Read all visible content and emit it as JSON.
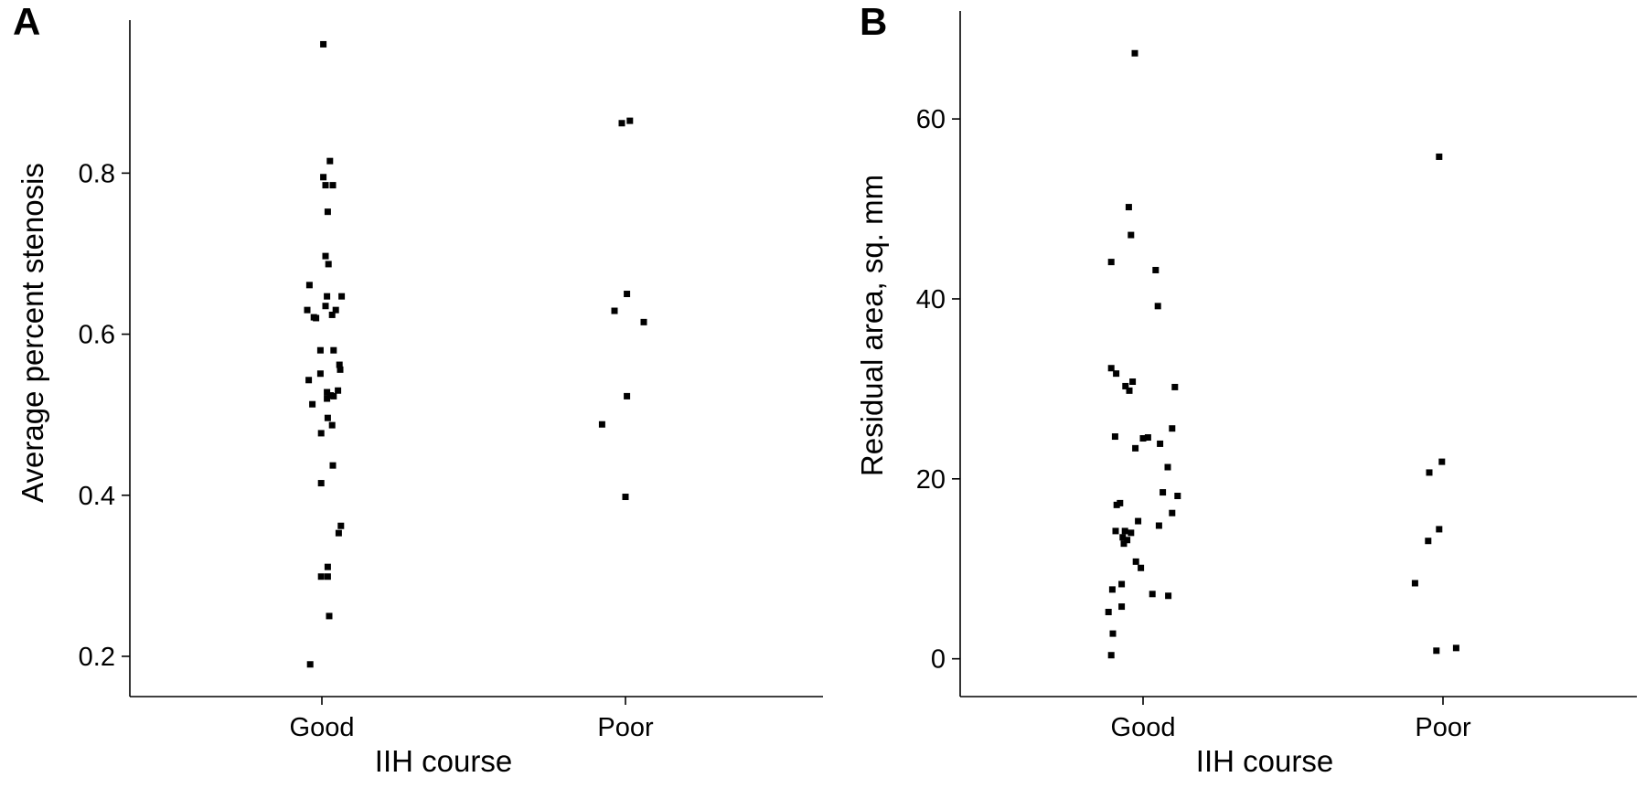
{
  "chart_data": [
    {
      "type": "scatter",
      "panel_label": "A",
      "title": "",
      "xlabel": "IIH course",
      "ylabel": "Average percent stenosis",
      "categories": [
        "Good",
        "Poor"
      ],
      "yticks": [
        "0.2",
        "0.4",
        "0.6",
        "0.8"
      ],
      "ylim": [
        0.15,
        0.99
      ],
      "grid": false,
      "series": [
        {
          "values": [
            {
              "category": "Good",
              "jitter": 0.02,
              "y": 0.96
            },
            {
              "category": "Good",
              "jitter": 0.11,
              "y": 0.815
            },
            {
              "category": "Good",
              "jitter": 0.02,
              "y": 0.795
            },
            {
              "category": "Good",
              "jitter": 0.05,
              "y": 0.785
            },
            {
              "category": "Good",
              "jitter": 0.15,
              "y": 0.785
            },
            {
              "category": "Good",
              "jitter": 0.08,
              "y": 0.752
            },
            {
              "category": "Good",
              "jitter": 0.05,
              "y": 0.697
            },
            {
              "category": "Good",
              "jitter": 0.09,
              "y": 0.687
            },
            {
              "category": "Good",
              "jitter": -0.17,
              "y": 0.661
            },
            {
              "category": "Good",
              "jitter": 0.27,
              "y": 0.647
            },
            {
              "category": "Good",
              "jitter": 0.07,
              "y": 0.647
            },
            {
              "category": "Good",
              "jitter": 0.05,
              "y": 0.635
            },
            {
              "category": "Good",
              "jitter": -0.2,
              "y": 0.63
            },
            {
              "category": "Good",
              "jitter": 0.19,
              "y": 0.63
            },
            {
              "category": "Good",
              "jitter": 0.14,
              "y": 0.624
            },
            {
              "category": "Good",
              "jitter": -0.11,
              "y": 0.621
            },
            {
              "category": "Good",
              "jitter": -0.08,
              "y": 0.62
            },
            {
              "category": "Good",
              "jitter": -0.02,
              "y": 0.58
            },
            {
              "category": "Good",
              "jitter": 0.16,
              "y": 0.58
            },
            {
              "category": "Good",
              "jitter": 0.24,
              "y": 0.562
            },
            {
              "category": "Good",
              "jitter": 0.25,
              "y": 0.556
            },
            {
              "category": "Good",
              "jitter": -0.02,
              "y": 0.551
            },
            {
              "category": "Good",
              "jitter": -0.18,
              "y": 0.543
            },
            {
              "category": "Good",
              "jitter": 0.22,
              "y": 0.53
            },
            {
              "category": "Good",
              "jitter": 0.07,
              "y": 0.528
            },
            {
              "category": "Good",
              "jitter": 0.12,
              "y": 0.524
            },
            {
              "category": "Good",
              "jitter": 0.16,
              "y": 0.523
            },
            {
              "category": "Good",
              "jitter": 0.07,
              "y": 0.52
            },
            {
              "category": "Good",
              "jitter": -0.13,
              "y": 0.513
            },
            {
              "category": "Good",
              "jitter": 0.08,
              "y": 0.496
            },
            {
              "category": "Good",
              "jitter": 0.14,
              "y": 0.487
            },
            {
              "category": "Good",
              "jitter": -0.01,
              "y": 0.477
            },
            {
              "category": "Good",
              "jitter": 0.15,
              "y": 0.437
            },
            {
              "category": "Good",
              "jitter": -0.01,
              "y": 0.415
            },
            {
              "category": "Good",
              "jitter": 0.26,
              "y": 0.362
            },
            {
              "category": "Good",
              "jitter": 0.23,
              "y": 0.353
            },
            {
              "category": "Good",
              "jitter": 0.08,
              "y": 0.311
            },
            {
              "category": "Good",
              "jitter": -0.01,
              "y": 0.299
            },
            {
              "category": "Good",
              "jitter": 0.08,
              "y": 0.299
            },
            {
              "category": "Good",
              "jitter": 0.1,
              "y": 0.25
            },
            {
              "category": "Good",
              "jitter": -0.16,
              "y": 0.19
            },
            {
              "category": "Poor",
              "jitter": -0.05,
              "y": 0.862
            },
            {
              "category": "Poor",
              "jitter": 0.06,
              "y": 0.865
            },
            {
              "category": "Poor",
              "jitter": 0.02,
              "y": 0.65
            },
            {
              "category": "Poor",
              "jitter": -0.15,
              "y": 0.629
            },
            {
              "category": "Poor",
              "jitter": 0.25,
              "y": 0.615
            },
            {
              "category": "Poor",
              "jitter": 0.02,
              "y": 0.523
            },
            {
              "category": "Poor",
              "jitter": -0.32,
              "y": 0.488
            },
            {
              "category": "Poor",
              "jitter": 0.0,
              "y": 0.398
            }
          ]
        }
      ]
    },
    {
      "type": "scatter",
      "panel_label": "B",
      "title": "",
      "xlabel": "IIH course",
      "ylabel": "Residual area, sq. mm",
      "categories": [
        "Good",
        "Poor"
      ],
      "yticks": [
        "0",
        "20",
        "40",
        "60"
      ],
      "ylim": [
        -4.2,
        72
      ],
      "grid": false,
      "series": [
        {
          "values": [
            {
              "category": "Good",
              "jitter": -0.15,
              "y": 67.3
            },
            {
              "category": "Good",
              "jitter": -0.26,
              "y": 50.2
            },
            {
              "category": "Good",
              "jitter": -0.22,
              "y": 47.1
            },
            {
              "category": "Good",
              "jitter": -0.58,
              "y": 44.1
            },
            {
              "category": "Good",
              "jitter": 0.23,
              "y": 43.2
            },
            {
              "category": "Good",
              "jitter": 0.27,
              "y": 39.2
            },
            {
              "category": "Good",
              "jitter": -0.58,
              "y": 32.3
            },
            {
              "category": "Good",
              "jitter": -0.49,
              "y": 31.7
            },
            {
              "category": "Good",
              "jitter": -0.19,
              "y": 30.8
            },
            {
              "category": "Good",
              "jitter": -0.32,
              "y": 30.3
            },
            {
              "category": "Good",
              "jitter": -0.25,
              "y": 29.8
            },
            {
              "category": "Good",
              "jitter": 0.58,
              "y": 30.2
            },
            {
              "category": "Good",
              "jitter": 0.53,
              "y": 25.6
            },
            {
              "category": "Good",
              "jitter": -0.51,
              "y": 24.7
            },
            {
              "category": "Good",
              "jitter": 0.09,
              "y": 24.6
            },
            {
              "category": "Good",
              "jitter": -0.0,
              "y": 24.5
            },
            {
              "category": "Good",
              "jitter": 0.31,
              "y": 23.9
            },
            {
              "category": "Good",
              "jitter": -0.14,
              "y": 23.4
            },
            {
              "category": "Good",
              "jitter": 0.45,
              "y": 21.3
            },
            {
              "category": "Good",
              "jitter": 0.36,
              "y": 18.5
            },
            {
              "category": "Good",
              "jitter": 0.63,
              "y": 18.1
            },
            {
              "category": "Good",
              "jitter": -0.42,
              "y": 17.3
            },
            {
              "category": "Good",
              "jitter": -0.48,
              "y": 17.1
            },
            {
              "category": "Good",
              "jitter": 0.53,
              "y": 16.2
            },
            {
              "category": "Good",
              "jitter": -0.09,
              "y": 15.3
            },
            {
              "category": "Good",
              "jitter": 0.29,
              "y": 14.8
            },
            {
              "category": "Good",
              "jitter": -0.5,
              "y": 14.2
            },
            {
              "category": "Good",
              "jitter": -0.33,
              "y": 14.2
            },
            {
              "category": "Good",
              "jitter": -0.22,
              "y": 14.0
            },
            {
              "category": "Good",
              "jitter": -0.37,
              "y": 13.5
            },
            {
              "category": "Good",
              "jitter": -0.29,
              "y": 13.2
            },
            {
              "category": "Good",
              "jitter": -0.35,
              "y": 12.8
            },
            {
              "category": "Good",
              "jitter": -0.13,
              "y": 10.8
            },
            {
              "category": "Good",
              "jitter": -0.04,
              "y": 10.1
            },
            {
              "category": "Good",
              "jitter": -0.39,
              "y": 8.3
            },
            {
              "category": "Good",
              "jitter": -0.56,
              "y": 7.7
            },
            {
              "category": "Good",
              "jitter": 0.17,
              "y": 7.2
            },
            {
              "category": "Good",
              "jitter": 0.46,
              "y": 7.0
            },
            {
              "category": "Good",
              "jitter": -0.39,
              "y": 5.8
            },
            {
              "category": "Good",
              "jitter": -0.63,
              "y": 5.2
            },
            {
              "category": "Good",
              "jitter": -0.55,
              "y": 2.8
            },
            {
              "category": "Good",
              "jitter": -0.58,
              "y": 0.4
            },
            {
              "category": "Poor",
              "jitter": -0.07,
              "y": 55.8
            },
            {
              "category": "Poor",
              "jitter": -0.02,
              "y": 21.9
            },
            {
              "category": "Poor",
              "jitter": -0.25,
              "y": 20.7
            },
            {
              "category": "Poor",
              "jitter": -0.07,
              "y": 14.4
            },
            {
              "category": "Poor",
              "jitter": -0.27,
              "y": 13.1
            },
            {
              "category": "Poor",
              "jitter": -0.51,
              "y": 8.4
            },
            {
              "category": "Poor",
              "jitter": -0.12,
              "y": 0.9
            },
            {
              "category": "Poor",
              "jitter": 0.24,
              "y": 1.2
            }
          ]
        }
      ]
    }
  ]
}
